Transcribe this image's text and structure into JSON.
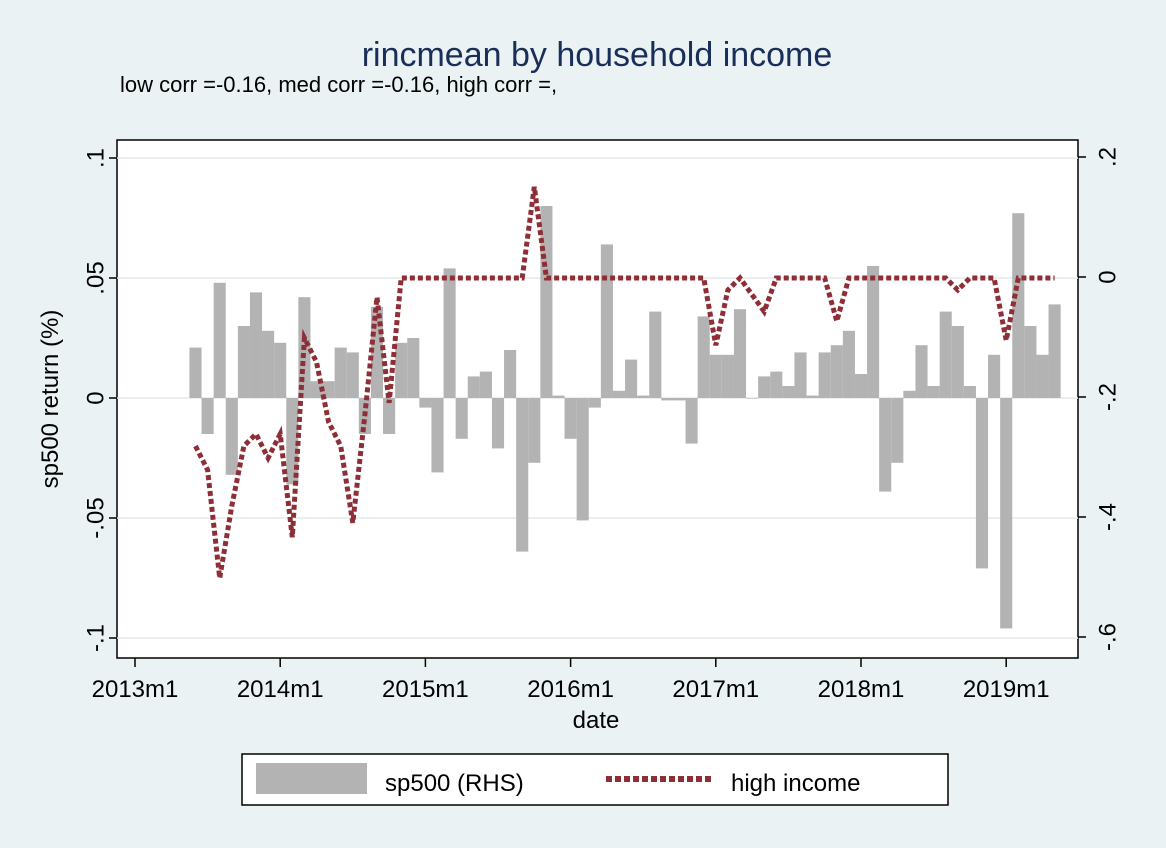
{
  "chart_data": {
    "type": "bar",
    "title": "rincmean by household income",
    "subtitle": "low corr =-0.16, med corr =-0.16, high corr =,",
    "xlabel": "date",
    "ylabel": "sp500 return (%)",
    "x_ticks": [
      "2013m1",
      "2014m1",
      "2015m1",
      "2016m1",
      "2017m1",
      "2018m1",
      "2019m1"
    ],
    "y_left_ticks": [
      ".1",
      ".05",
      "0",
      "-.05",
      "-.1"
    ],
    "y_right_ticks": [
      ".2",
      "0",
      "-.2",
      "-.4",
      "-.6"
    ],
    "ylim_left": [
      -0.1,
      0.1
    ],
    "ylim_right": [
      -0.6,
      0.2
    ],
    "grid": true,
    "legend_position": "bottom",
    "series": [
      {
        "name": "sp500 (RHS)",
        "kind": "bar",
        "color": "#b3b3b3",
        "x": [
          "2013m6",
          "2013m7",
          "2013m8",
          "2013m9",
          "2013m10",
          "2013m11",
          "2013m12",
          "2014m1",
          "2014m2",
          "2014m3",
          "2014m4",
          "2014m5",
          "2014m6",
          "2014m7",
          "2014m8",
          "2014m9",
          "2014m10",
          "2014m11",
          "2014m12",
          "2015m1",
          "2015m2",
          "2015m3",
          "2015m4",
          "2015m5",
          "2015m6",
          "2015m7",
          "2015m8",
          "2015m9",
          "2015m10",
          "2015m11",
          "2015m12",
          "2016m1",
          "2016m2",
          "2016m3",
          "2016m4",
          "2016m5",
          "2016m6",
          "2016m7",
          "2016m8",
          "2016m9",
          "2016m10",
          "2016m11",
          "2016m12",
          "2017m1",
          "2017m2",
          "2017m3",
          "2017m4",
          "2017m5",
          "2017m6",
          "2017m7",
          "2017m8",
          "2017m9",
          "2017m10",
          "2017m11",
          "2017m12",
          "2018m1",
          "2018m2",
          "2018m3",
          "2018m4",
          "2018m5",
          "2018m6",
          "2018m7",
          "2018m8",
          "2018m9",
          "2018m10",
          "2018m11",
          "2018m12",
          "2019m1",
          "2019m2",
          "2019m3",
          "2019m4",
          "2019m5"
        ],
        "values": [
          0.021,
          -0.015,
          0.048,
          -0.032,
          0.03,
          0.044,
          0.028,
          0.023,
          -0.036,
          0.042,
          0.007,
          0.007,
          0.021,
          0.019,
          -0.015,
          0.038,
          -0.015,
          0.023,
          0.025,
          -0.004,
          -0.031,
          0.054,
          -0.017,
          0.009,
          0.011,
          -0.021,
          0.02,
          -0.064,
          -0.027,
          0.08,
          0.001,
          -0.017,
          -0.051,
          -0.004,
          0.064,
          0.003,
          0.016,
          0.001,
          0.036,
          -0.001,
          -0.001,
          -0.019,
          0.034,
          0.018,
          0.018,
          0.037,
          0.0,
          0.009,
          0.011,
          0.005,
          0.019,
          0.001,
          0.019,
          0.022,
          0.028,
          0.01,
          0.055,
          -0.039,
          -0.027,
          0.003,
          0.022,
          0.005,
          0.036,
          0.03,
          0.005,
          -0.071,
          0.018,
          -0.096,
          0.077,
          0.03,
          0.018,
          0.039
        ]
      },
      {
        "name": "high income",
        "kind": "line",
        "color": "#8e2e36",
        "x": [
          "2013m6",
          "2013m7",
          "2013m8",
          "2013m9",
          "2013m10",
          "2013m11",
          "2013m12",
          "2014m1",
          "2014m2",
          "2014m3",
          "2014m4",
          "2014m5",
          "2014m6",
          "2014m7",
          "2014m8",
          "2014m9",
          "2014m10",
          "2014m11",
          "2014m12",
          "2015m1",
          "2015m2",
          "2015m3",
          "2015m4",
          "2015m5",
          "2015m6",
          "2015m7",
          "2015m8",
          "2015m9",
          "2015m10",
          "2015m11",
          "2015m12",
          "2016m1",
          "2016m2",
          "2016m3",
          "2016m4",
          "2016m5",
          "2016m6",
          "2016m7",
          "2016m8",
          "2016m9",
          "2016m10",
          "2016m11",
          "2016m12",
          "2017m1",
          "2017m2",
          "2017m3",
          "2017m4",
          "2017m5",
          "2017m6",
          "2017m7",
          "2017m8",
          "2017m9",
          "2017m10",
          "2017m11",
          "2017m12",
          "2018m1",
          "2018m2",
          "2018m3",
          "2018m4",
          "2018m5",
          "2018m6",
          "2018m7",
          "2018m8",
          "2018m9",
          "2018m10",
          "2018m11",
          "2018m12",
          "2019m1",
          "2019m2",
          "2019m3",
          "2019m4",
          "2019m5"
        ],
        "values": [
          -0.02,
          -0.03,
          -0.075,
          -0.045,
          -0.02,
          -0.015,
          -0.025,
          -0.015,
          -0.058,
          0.025,
          0.015,
          -0.01,
          -0.02,
          -0.052,
          -0.007,
          0.042,
          -0.002,
          0.05,
          0.05,
          0.05,
          0.05,
          0.05,
          0.05,
          0.05,
          0.05,
          0.05,
          0.05,
          0.05,
          0.088,
          0.05,
          0.05,
          0.05,
          0.05,
          0.05,
          0.05,
          0.05,
          0.05,
          0.05,
          0.05,
          0.05,
          0.05,
          0.05,
          0.05,
          0.022,
          0.045,
          0.05,
          0.043,
          0.036,
          0.05,
          0.05,
          0.05,
          0.05,
          0.05,
          0.032,
          0.05,
          0.05,
          0.05,
          0.05,
          0.05,
          0.05,
          0.05,
          0.05,
          0.05,
          0.045,
          0.05,
          0.05,
          0.05,
          0.024,
          0.05,
          0.05,
          0.05,
          0.05
        ]
      }
    ]
  }
}
